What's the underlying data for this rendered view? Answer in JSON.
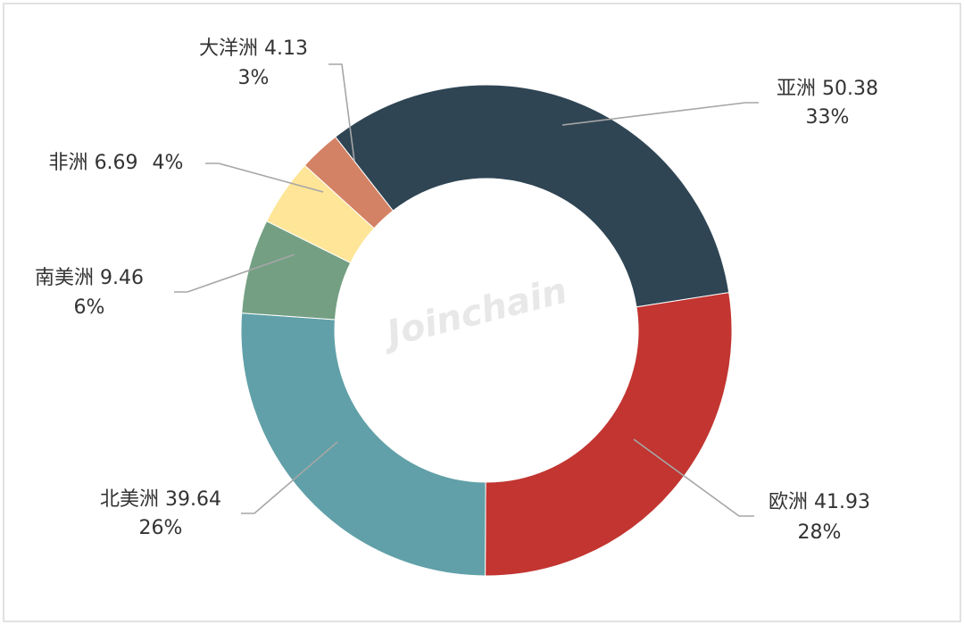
{
  "chart_data": {
    "type": "donut",
    "watermark": "Joinchain",
    "categories": [
      "亚洲",
      "欧洲",
      "北美洲",
      "南美洲",
      "非洲",
      "大洋洲"
    ],
    "values": [
      50.38,
      41.93,
      39.64,
      9.46,
      6.69,
      4.13
    ],
    "percentages": [
      33,
      28,
      26,
      6,
      4,
      3
    ],
    "percentage_labels": [
      "33%",
      "28%",
      "26%",
      "6%",
      "4%",
      "3%"
    ],
    "colors": [
      "#2f4554",
      "#c23531",
      "#61a0a8",
      "#749f83",
      "#fee597",
      "#d48265"
    ]
  }
}
